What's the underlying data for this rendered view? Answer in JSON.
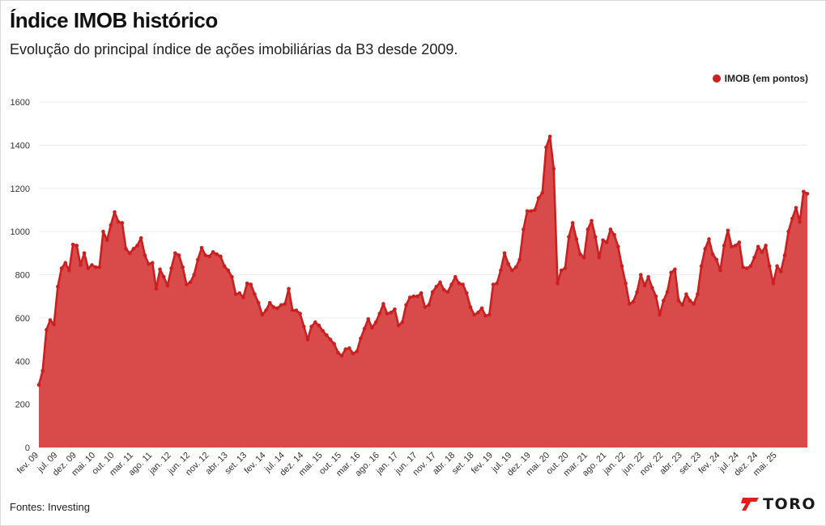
{
  "header": {
    "title": "Índice IMOB histórico",
    "subtitle": "Evolução do principal índice de ações imobiliárias da B3 desde 2009."
  },
  "footer": {
    "source": "Fontes: Investing",
    "brand": "TORO",
    "brand_icon": "toro-logo-icon"
  },
  "colors": {
    "line": "#cc1f1f",
    "fill": "#d94a4a",
    "grid": "#ececec",
    "brand": "#e11d1d"
  },
  "chart_data": {
    "type": "area",
    "title": "Índice IMOB histórico",
    "subtitle": "Evolução do principal índice de ações imobiliárias da B3 desde 2009.",
    "xlabel": "",
    "ylabel": "",
    "ylim": [
      0,
      1600
    ],
    "yticks": [
      0,
      200,
      400,
      600,
      800,
      1000,
      1200,
      1400,
      1600
    ],
    "grid": true,
    "legend_position": "top-right",
    "x_tick_labels": [
      "fev. 09",
      "jul. 09",
      "dez. 09",
      "mai. 10",
      "out. 10",
      "mar. 11",
      "ago. 11",
      "jan. 12",
      "jun. 12",
      "nov. 12",
      "abr. 13",
      "set. 13",
      "fev. 14",
      "jul. 14",
      "dez. 14",
      "mai. 15",
      "out. 15",
      "mar. 16",
      "ago. 16",
      "jan. 17",
      "jun. 17",
      "nov. 17",
      "abr. 18",
      "set. 18",
      "fev. 19",
      "jul. 19",
      "dez. 19",
      "mai. 20",
      "out. 20",
      "mar. 21",
      "ago. 21",
      "jan. 22",
      "jun. 22",
      "nov. 22",
      "abr. 23",
      "set. 23",
      "fev. 24",
      "jul. 24",
      "dez. 24",
      "mai. 25"
    ],
    "series": [
      {
        "name": "IMOB (em pontos)",
        "start": "2009-02",
        "frequency": "monthly",
        "values": [
          290,
          355,
          545,
          590,
          570,
          745,
          830,
          855,
          820,
          940,
          935,
          845,
          900,
          830,
          845,
          835,
          835,
          1000,
          960,
          1030,
          1090,
          1045,
          1040,
          920,
          900,
          920,
          935,
          970,
          890,
          850,
          855,
          735,
          825,
          790,
          750,
          830,
          900,
          890,
          835,
          755,
          765,
          800,
          870,
          925,
          890,
          885,
          905,
          895,
          885,
          840,
          820,
          790,
          710,
          715,
          695,
          760,
          755,
          710,
          670,
          615,
          635,
          670,
          650,
          645,
          660,
          665,
          735,
          635,
          635,
          620,
          560,
          500,
          560,
          580,
          565,
          540,
          520,
          500,
          480,
          440,
          425,
          455,
          460,
          435,
          445,
          505,
          550,
          595,
          555,
          580,
          620,
          665,
          620,
          625,
          640,
          565,
          580,
          660,
          695,
          700,
          700,
          715,
          650,
          660,
          720,
          745,
          765,
          730,
          720,
          755,
          790,
          760,
          755,
          715,
          650,
          615,
          625,
          645,
          610,
          615,
          755,
          760,
          820,
          900,
          850,
          820,
          835,
          870,
          1010,
          1095,
          1095,
          1100,
          1155,
          1180,
          1390,
          1440,
          1290,
          760,
          820,
          830,
          975,
          1040,
          965,
          895,
          880,
          1010,
          1050,
          975,
          880,
          960,
          950,
          1010,
          985,
          930,
          840,
          760,
          665,
          675,
          720,
          800,
          750,
          790,
          740,
          700,
          615,
          680,
          720,
          810,
          825,
          680,
          660,
          710,
          680,
          665,
          710,
          840,
          920,
          965,
          895,
          870,
          820,
          935,
          1005,
          930,
          935,
          950,
          835,
          830,
          840,
          880,
          930,
          905,
          935,
          840,
          760,
          840,
          815,
          890,
          1000,
          1060,
          1110,
          1045,
          1185,
          1175
        ]
      }
    ]
  }
}
